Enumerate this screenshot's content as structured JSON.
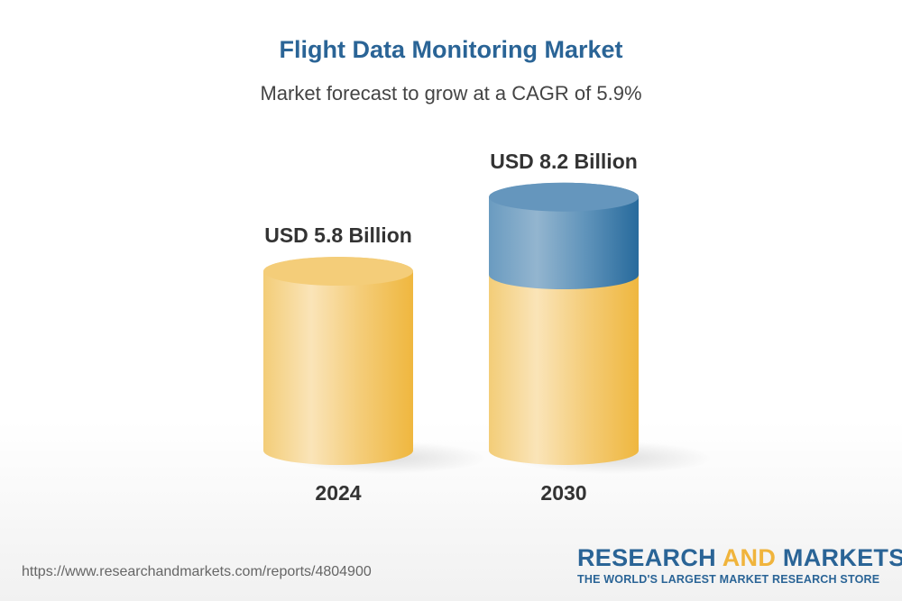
{
  "title": "Flight Data Monitoring Market",
  "subtitle": "Market forecast to grow at a CAGR of 5.9%",
  "chart_data": {
    "type": "bar",
    "style": "3d-cylinder",
    "categories": [
      "2024",
      "2030"
    ],
    "values": [
      5.8,
      8.2
    ],
    "data_labels": [
      "USD 5.8 Billion",
      "USD 8.2 Billion"
    ],
    "unit": "USD Billion",
    "colors": {
      "base": "#f0b43c",
      "growth": "#2a6a9c"
    }
  },
  "footer": {
    "url": "https://www.researchandmarkets.com/reports/4804900",
    "logo_word1": "RESEARCH ",
    "logo_word2": "AND",
    "logo_word3": " MARKETS",
    "logo_tagline": "THE WORLD'S LARGEST MARKET RESEARCH STORE"
  }
}
